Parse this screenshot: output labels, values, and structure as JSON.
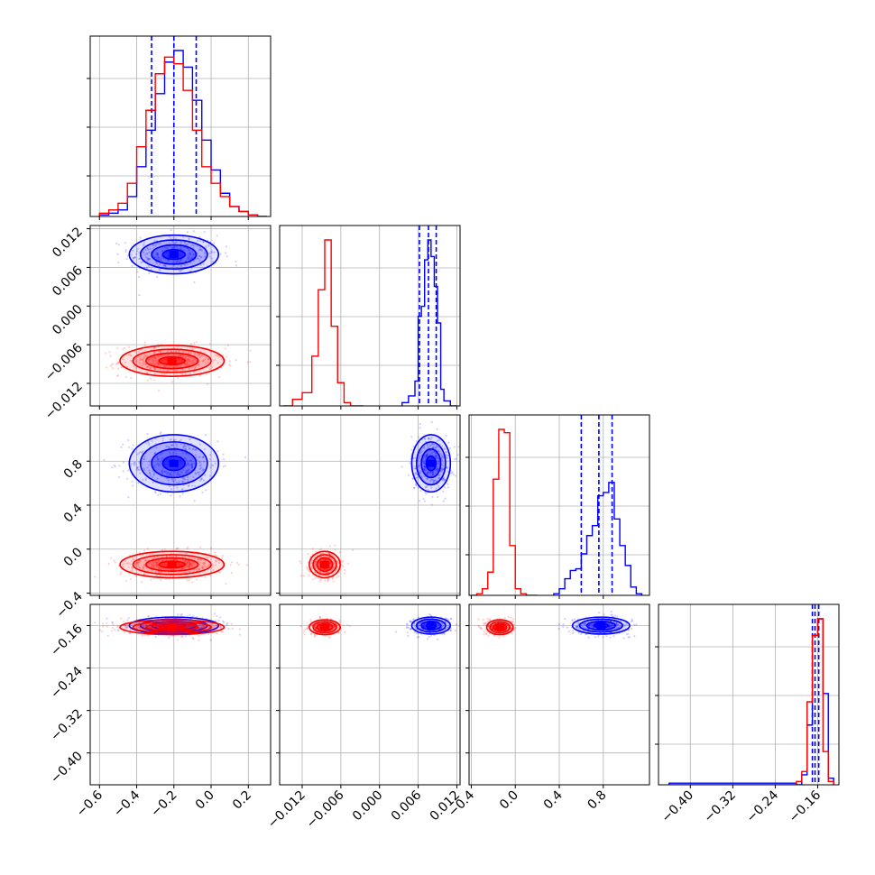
{
  "chart_data": {
    "type": "corner",
    "title": "",
    "grid": true,
    "parameters": [
      {
        "range": [
          -0.65,
          0.32
        ],
        "ticks": [
          -0.6,
          -0.4,
          -0.2,
          0.0,
          0.2
        ],
        "labels": [
          "−0.6",
          "−0.4",
          "−0.2",
          "0.0",
          "0.2"
        ]
      },
      {
        "range": [
          -0.0155,
          0.0125
        ],
        "ticks": [
          -0.012,
          -0.006,
          0.0,
          0.006,
          0.012
        ],
        "labels": [
          "−0.012",
          "−0.006",
          "0.000",
          "0.006",
          "0.012"
        ]
      },
      {
        "range": [
          -0.42,
          1.22
        ],
        "ticks": [
          -0.4,
          0.0,
          0.4,
          0.8
        ],
        "labels": [
          "−0.4",
          "0.0",
          "0.4",
          "0.8"
        ]
      },
      {
        "range": [
          -0.46,
          -0.12
        ],
        "ticks": [
          -0.4,
          -0.32,
          -0.24,
          -0.16
        ],
        "labels": [
          "−0.40",
          "−0.32",
          "−0.24",
          "−0.16"
        ]
      }
    ],
    "colors": {
      "series_a": "#0000ff",
      "series_b": "#ff0000",
      "quantile_line": "#0000ff",
      "frame": "#000000",
      "grid": "#b0b0b0"
    },
    "series": [
      {
        "color": "#0000ff",
        "mean": [
          -0.2,
          0.008,
          0.78,
          -0.16
        ],
        "std": [
          0.12,
          0.0015,
          0.13,
          0.008
        ],
        "quantiles": [
          [
            -0.32,
            -0.2,
            -0.08
          ],
          [
            0.0062,
            0.0076,
            0.0088
          ],
          [
            0.6,
            0.76,
            0.88
          ],
          [
            -0.17,
            -0.165,
            -0.158
          ]
        ],
        "hist": [
          {
            "x": [
              -0.6,
              -0.55,
              -0.5,
              -0.45,
              -0.4,
              -0.35,
              -0.3,
              -0.25,
              -0.2,
              -0.15,
              -0.1,
              -0.05,
              0.0,
              0.05,
              0.1,
              0.15,
              0.2,
              0.25
            ],
            "counts": [
              0.01,
              0.02,
              0.04,
              0.12,
              0.3,
              0.52,
              0.74,
              0.93,
              1.0,
              0.9,
              0.7,
              0.46,
              0.28,
              0.14,
              0.06,
              0.03,
              0.01,
              0.0
            ]
          },
          {
            "x": [
              0.0035,
              0.0045,
              0.0055,
              0.006,
              0.0065,
              0.007,
              0.0075,
              0.008,
              0.0085,
              0.009,
              0.0095,
              0.01,
              0.011
            ],
            "counts": [
              0.02,
              0.06,
              0.15,
              0.54,
              0.6,
              0.88,
              1.0,
              0.9,
              0.72,
              0.5,
              0.1,
              0.03,
              0.0
            ]
          },
          {
            "x": [
              0.35,
              0.4,
              0.45,
              0.5,
              0.55,
              0.6,
              0.65,
              0.7,
              0.75,
              0.8,
              0.85,
              0.9,
              0.95,
              1.0,
              1.05,
              1.1
            ],
            "counts": [
              0.01,
              0.04,
              0.1,
              0.15,
              0.16,
              0.25,
              0.36,
              0.42,
              0.6,
              0.62,
              0.68,
              0.46,
              0.3,
              0.18,
              0.05,
              0.01
            ]
          },
          {
            "x": [
              -0.44,
              -0.2,
              -0.19,
              -0.18,
              -0.17,
              -0.16,
              -0.15,
              -0.14
            ],
            "counts": [
              0.01,
              0.0,
              0.06,
              0.36,
              0.9,
              1.0,
              0.55,
              0.04
            ]
          }
        ]
      },
      {
        "color": "#ff0000",
        "mean": [
          -0.21,
          -0.0085,
          -0.14,
          -0.163
        ],
        "std": [
          0.14,
          0.0012,
          0.06,
          0.007
        ],
        "hist": [
          {
            "x": [
              -0.6,
              -0.55,
              -0.5,
              -0.45,
              -0.4,
              -0.35,
              -0.3,
              -0.25,
              -0.2,
              -0.15,
              -0.1,
              -0.05,
              0.0,
              0.05,
              0.1,
              0.15,
              0.2,
              0.25
            ],
            "counts": [
              0.02,
              0.04,
              0.08,
              0.2,
              0.42,
              0.64,
              0.86,
              0.96,
              0.92,
              0.76,
              0.52,
              0.3,
              0.2,
              0.12,
              0.06,
              0.03,
              0.01,
              0.0
            ]
          },
          {
            "x": [
              -0.015,
              -0.0135,
              -0.012,
              -0.0105,
              -0.0095,
              -0.0085,
              -0.0075,
              -0.0065,
              -0.0055,
              -0.0045,
              -0.0035
            ],
            "counts": [
              0.0,
              0.04,
              0.08,
              0.3,
              0.7,
              1.0,
              0.48,
              0.14,
              0.02,
              0.0,
              0.0
            ]
          },
          {
            "x": [
              -0.4,
              -0.35,
              -0.3,
              -0.25,
              -0.2,
              -0.15,
              -0.1,
              -0.05,
              0.0,
              0.05,
              0.1,
              0.15
            ],
            "counts": [
              0.0,
              0.01,
              0.04,
              0.14,
              0.7,
              1.0,
              0.98,
              0.3,
              0.04,
              0.01,
              0.0,
              0.0
            ]
          },
          {
            "x": [
              -0.44,
              -0.2,
              -0.19,
              -0.18,
              -0.17,
              -0.16,
              -0.15,
              -0.14
            ],
            "counts": [
              0.0,
              0.02,
              0.08,
              0.5,
              0.9,
              1.0,
              0.2,
              0.02
            ]
          }
        ]
      }
    ]
  }
}
